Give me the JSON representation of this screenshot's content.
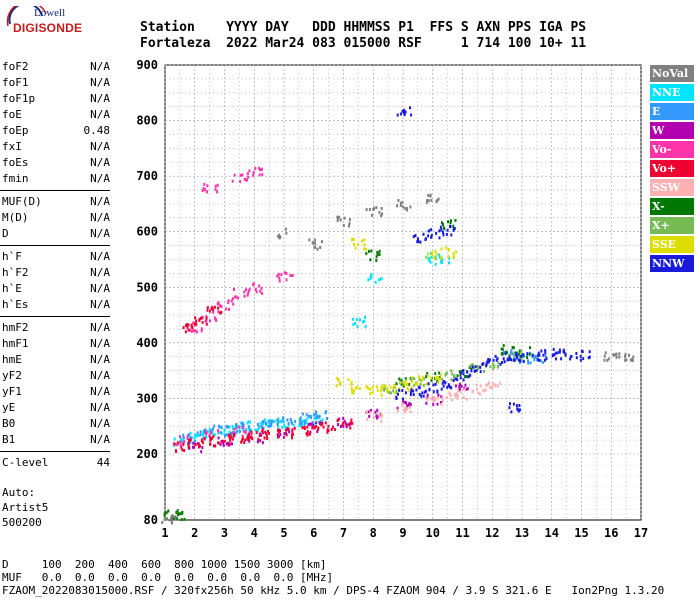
{
  "logo": {
    "top": "Lowell",
    "bottom": "DIGISONDE"
  },
  "header": {
    "line1": "Station    YYYY DAY   DDD HHMMSS P1  FFS S AXN PPS IGA PS",
    "line2": "Fortaleza  2022 Mar24 083 015000 RSF     1 714 100 10+ 11"
  },
  "params": [
    {
      "name": "foF2",
      "value": "N/A"
    },
    {
      "name": "foF1",
      "value": "N/A"
    },
    {
      "name": "foF1p",
      "value": "N/A"
    },
    {
      "name": "foE",
      "value": "N/A"
    },
    {
      "name": "foEp",
      "value": "0.48"
    },
    {
      "name": "fxI",
      "value": "N/A"
    },
    {
      "name": "foEs",
      "value": "N/A"
    },
    {
      "name": "fmin",
      "value": "N/A"
    },
    {
      "name": "MUF(D)",
      "value": "N/A"
    },
    {
      "name": "M(D)",
      "value": "N/A"
    },
    {
      "name": "D",
      "value": "N/A"
    },
    {
      "name": "h`F",
      "value": "N/A"
    },
    {
      "name": "h`F2",
      "value": "N/A"
    },
    {
      "name": "h`E",
      "value": "N/A"
    },
    {
      "name": "h`Es",
      "value": "N/A"
    },
    {
      "name": "hmF2",
      "value": "N/A"
    },
    {
      "name": "hmF1",
      "value": "N/A"
    },
    {
      "name": "hmE",
      "value": "N/A"
    },
    {
      "name": "yF2",
      "value": "N/A"
    },
    {
      "name": "yF1",
      "value": "N/A"
    },
    {
      "name": "yE",
      "value": "N/A"
    },
    {
      "name": "B0",
      "value": "N/A"
    },
    {
      "name": "B1",
      "value": "N/A"
    },
    {
      "name": "C-level",
      "value": "44"
    }
  ],
  "artist": {
    "l1": "Auto:",
    "l2": "Artist5",
    "l3": "500200"
  },
  "legend": [
    {
      "label": "NoVal",
      "color": "#808080"
    },
    {
      "label": "NNE",
      "color": "#00e5ff"
    },
    {
      "label": "E",
      "color": "#3399ff"
    },
    {
      "label": "W",
      "color": "#b000b0"
    },
    {
      "label": "Vo-",
      "color": "#ff33aa"
    },
    {
      "label": "Vo+",
      "color": "#ee0033"
    },
    {
      "label": "SSW",
      "color": "#ffb0b0"
    },
    {
      "label": "X-",
      "color": "#007700"
    },
    {
      "label": "X+",
      "color": "#77bb55"
    },
    {
      "label": "SSE",
      "color": "#dddd00"
    },
    {
      "label": "NNW",
      "color": "#1a1add"
    }
  ],
  "footer": {
    "line1": "D     100  200  400  600  800 1000 1500 3000 [km]",
    "line2": "MUF   0.0  0.0  0.0  0.0  0.0  0.0  0.0  0.0 [MHz]",
    "line3": "FZAOM_2022083015000.RSF / 320fx256h 50 kHz 5.0 km / DPS-4 FZAOM 904 / 3.9 S 321.6 E   Ion2Png 1.3.20"
  },
  "chart_data": {
    "type": "scatter",
    "xlim": [
      1,
      17
    ],
    "ylim": [
      80,
      900
    ],
    "x_ticks": [
      1,
      2,
      3,
      4,
      5,
      6,
      7,
      8,
      9,
      10,
      11,
      12,
      13,
      14,
      15,
      16,
      17
    ],
    "y_ticks": [
      80,
      200,
      300,
      400,
      500,
      600,
      700,
      800,
      900
    ],
    "grid": true,
    "series": [
      {
        "name": "NNE",
        "color": "#00e5ff",
        "points": [
          [
            1.5,
            225
          ],
          [
            2,
            232
          ],
          [
            2.5,
            240
          ],
          [
            3,
            245
          ],
          [
            3.5,
            250
          ],
          [
            4,
            252
          ],
          [
            4.5,
            255
          ],
          [
            5,
            258
          ],
          [
            5.5,
            262
          ],
          [
            6,
            265
          ],
          [
            10,
            555
          ],
          [
            10.3,
            548
          ],
          [
            7.5,
            440
          ],
          [
            8,
            520
          ]
        ]
      },
      {
        "name": "E",
        "color": "#3399ff",
        "points": [
          [
            1.8,
            230
          ],
          [
            2.3,
            238
          ],
          [
            2.8,
            244
          ],
          [
            3.3,
            248
          ],
          [
            3.8,
            252
          ],
          [
            4.3,
            256
          ],
          [
            4.8,
            260
          ],
          [
            5.3,
            263
          ],
          [
            5.8,
            266
          ],
          [
            6.3,
            270
          ],
          [
            12.5,
            380
          ],
          [
            13,
            375
          ],
          [
            13.5,
            372
          ]
        ]
      },
      {
        "name": "W",
        "color": "#b000b0",
        "points": [
          [
            2,
            215
          ],
          [
            3,
            225
          ],
          [
            4,
            232
          ],
          [
            5,
            240
          ],
          [
            6,
            250
          ],
          [
            7,
            260
          ],
          [
            8,
            275
          ],
          [
            9,
            290
          ],
          [
            10,
            300
          ],
          [
            11,
            320
          ]
        ]
      },
      {
        "name": "Vo-",
        "color": "#ff33aa",
        "points": [
          [
            1.5,
            228
          ],
          [
            2.5,
            236
          ],
          [
            3.5,
            243
          ],
          [
            2,
            430
          ],
          [
            2.5,
            450
          ],
          [
            3,
            470
          ],
          [
            3.5,
            490
          ],
          [
            4,
            500
          ],
          [
            2.5,
            680
          ],
          [
            3.5,
            700
          ],
          [
            4,
            710
          ],
          [
            5,
            520
          ]
        ]
      },
      {
        "name": "Vo+",
        "color": "#ee0033",
        "points": [
          [
            1.5,
            215
          ],
          [
            2,
            220
          ],
          [
            2.5,
            225
          ],
          [
            3,
            228
          ],
          [
            3.5,
            232
          ],
          [
            4,
            235
          ],
          [
            4.5,
            238
          ],
          [
            5,
            240
          ],
          [
            5.5,
            243
          ],
          [
            6,
            246
          ],
          [
            6.5,
            250
          ],
          [
            7,
            255
          ],
          [
            1.8,
            430
          ],
          [
            2.2,
            445
          ],
          [
            2.6,
            460
          ]
        ]
      },
      {
        "name": "SSW",
        "color": "#ffb0b0",
        "points": [
          [
            10,
            300
          ],
          [
            10.5,
            305
          ],
          [
            11,
            310
          ],
          [
            11.5,
            318
          ],
          [
            12,
            322
          ],
          [
            8,
            270
          ],
          [
            9,
            285
          ]
        ]
      },
      {
        "name": "X-",
        "color": "#007700",
        "points": [
          [
            1.2,
            90
          ],
          [
            1.4,
            92
          ],
          [
            9,
            330
          ],
          [
            10,
            340
          ],
          [
            11,
            350
          ],
          [
            12.5,
            390
          ],
          [
            13,
            385
          ],
          [
            8,
            560
          ],
          [
            10.5,
            615
          ]
        ]
      },
      {
        "name": "X+",
        "color": "#77bb55",
        "points": [
          [
            8.5,
            320
          ],
          [
            9.5,
            330
          ],
          [
            10.5,
            345
          ],
          [
            11.5,
            355
          ],
          [
            12,
            365
          ],
          [
            12.8,
            380
          ]
        ]
      },
      {
        "name": "SSE",
        "color": "#dddd00",
        "points": [
          [
            7,
            330
          ],
          [
            7.5,
            320
          ],
          [
            8,
            315
          ],
          [
            8.5,
            318
          ],
          [
            9,
            325
          ],
          [
            9.5,
            335
          ],
          [
            10,
            340
          ],
          [
            10,
            560
          ],
          [
            10.5,
            565
          ],
          [
            7.5,
            580
          ]
        ]
      },
      {
        "name": "NNW",
        "color": "#1a1add",
        "points": [
          [
            9,
            310
          ],
          [
            9.5,
            315
          ],
          [
            10,
            320
          ],
          [
            10.5,
            330
          ],
          [
            11,
            345
          ],
          [
            11.5,
            360
          ],
          [
            12,
            370
          ],
          [
            12.5,
            375
          ],
          [
            13,
            378
          ],
          [
            13.5,
            380
          ],
          [
            14,
            382
          ],
          [
            14.5,
            382
          ],
          [
            15,
            380
          ],
          [
            9.5,
            590
          ],
          [
            10,
            600
          ],
          [
            10.5,
            605
          ],
          [
            9,
            820
          ],
          [
            12.8,
            285
          ]
        ]
      },
      {
        "name": "NoVal",
        "color": "#808080",
        "points": [
          [
            1.1,
            85
          ],
          [
            5,
            600
          ],
          [
            6,
            580
          ],
          [
            7,
            620
          ],
          [
            8,
            640
          ],
          [
            9,
            650
          ],
          [
            10,
            660
          ],
          [
            16,
            378
          ],
          [
            16.5,
            378
          ]
        ]
      }
    ]
  }
}
